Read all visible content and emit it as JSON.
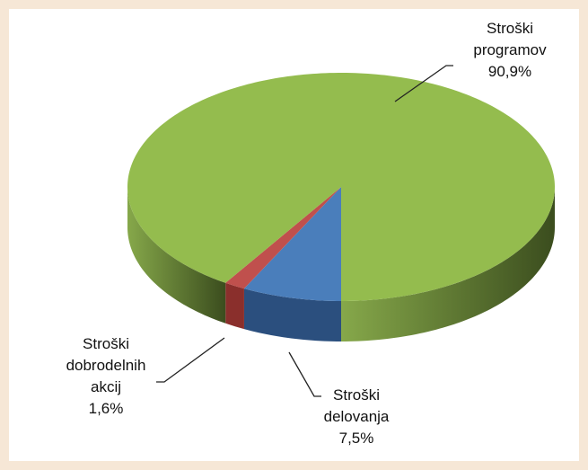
{
  "chart_data": {
    "type": "pie",
    "categories": [
      "Stroški delovanja",
      "Stroški dobrodelnih akcij",
      "Stroški programov"
    ],
    "values": [
      7.5,
      1.6,
      90.9
    ],
    "value_labels": [
      "7,5%",
      "1,6%",
      "90,9%"
    ],
    "colors": [
      "#4a7ebb",
      "#c0504d",
      "#94bc4e"
    ]
  }
}
